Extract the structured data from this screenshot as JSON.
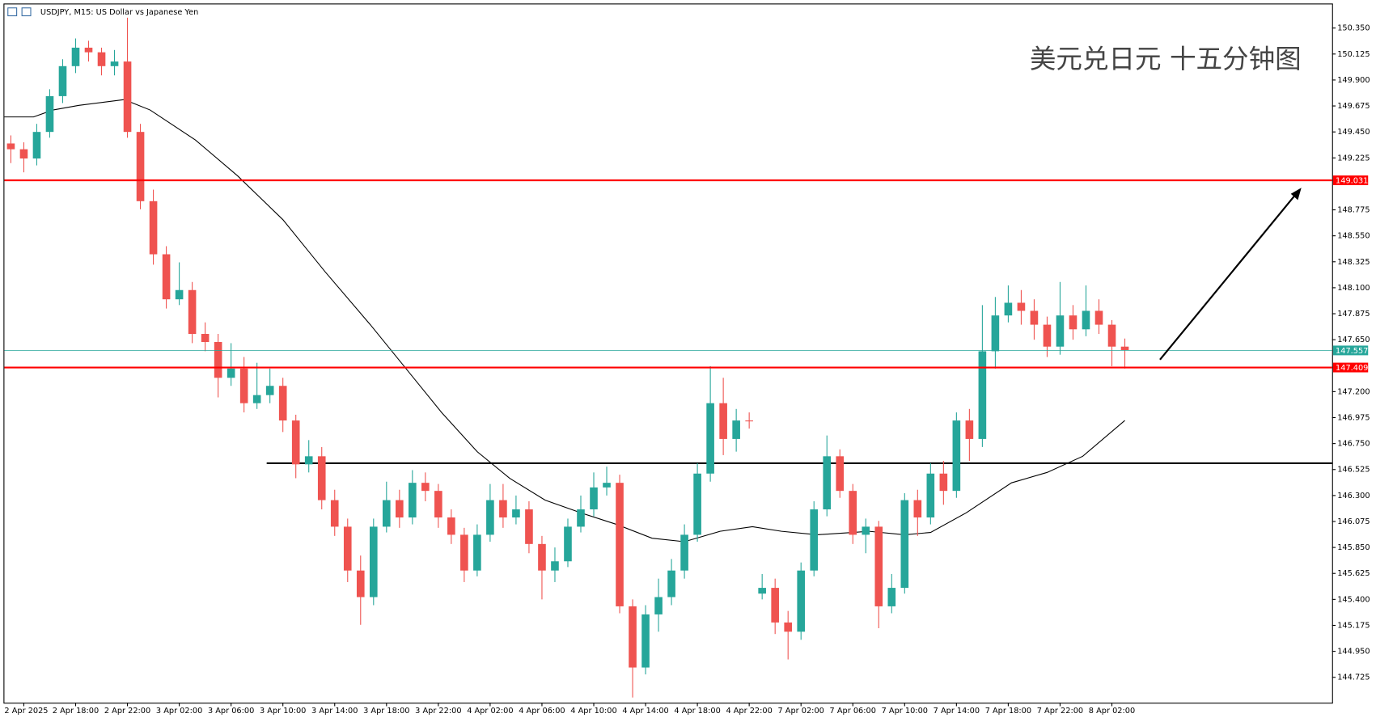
{
  "chart_data": {
    "type": "candlestick",
    "title": "USDJPY, M15:  US Dollar vs Japanese Yen",
    "annotation": "美元兑日元 十五分钟图",
    "up_color": "#26a69a",
    "down_color": "#ef5350",
    "x": [
      -4,
      0,
      4,
      8,
      12,
      16,
      20,
      24,
      28,
      32,
      36,
      40,
      44,
      48,
      52,
      56,
      60,
      64,
      68,
      72,
      76,
      80,
      84,
      88,
      92,
      96,
      100,
      104,
      108,
      112,
      116,
      120,
      124,
      128,
      132,
      136,
      140,
      144,
      148,
      152,
      156,
      160,
      164,
      168,
      172,
      176,
      180,
      184,
      188,
      192,
      196,
      200,
      204,
      208,
      212,
      216,
      220,
      224,
      228,
      232,
      236,
      240,
      244,
      248,
      252,
      256,
      260,
      264,
      268,
      272,
      276,
      280,
      284,
      288,
      292,
      296,
      300,
      304,
      308,
      312,
      316,
      320,
      324,
      328,
      332,
      336,
      340
    ],
    "open": [
      149.35,
      149.3,
      149.22,
      149.45,
      149.76,
      150.02,
      150.18,
      150.14,
      150.02,
      150.06,
      149.45,
      148.85,
      148.39,
      148.0,
      148.08,
      147.7,
      147.63,
      147.32,
      147.4,
      147.1,
      147.17,
      147.25,
      146.95,
      146.57,
      146.64,
      146.26,
      146.03,
      145.65,
      145.42,
      146.03,
      146.26,
      146.11,
      146.41,
      146.34,
      146.11,
      145.96,
      145.65,
      145.96,
      146.26,
      146.11,
      146.18,
      145.88,
      145.65,
      145.73,
      146.03,
      146.18,
      146.37,
      146.41,
      145.34,
      144.81,
      145.27,
      145.42,
      145.65,
      145.96,
      146.49,
      147.1,
      146.79,
      146.95,
      145.45,
      145.5,
      145.2,
      145.12,
      145.65,
      146.18,
      146.64,
      146.34,
      145.96,
      146.03,
      145.34,
      145.5,
      146.26,
      146.11,
      146.49,
      146.34,
      146.95,
      146.79,
      147.55,
      147.86,
      147.97,
      147.9,
      147.78,
      147.59,
      147.86,
      147.74,
      147.9,
      147.78,
      147.59
    ],
    "high": [
      149.42,
      149.36,
      149.52,
      149.82,
      150.08,
      150.26,
      150.24,
      150.18,
      150.16,
      150.44,
      149.52,
      148.95,
      148.46,
      148.32,
      148.15,
      147.8,
      147.7,
      147.62,
      147.5,
      147.45,
      147.4,
      147.32,
      147.0,
      146.78,
      146.72,
      146.35,
      146.1,
      145.78,
      146.1,
      146.42,
      146.35,
      146.52,
      146.5,
      146.4,
      146.18,
      146.02,
      146.05,
      146.4,
      146.4,
      146.3,
      146.25,
      145.95,
      145.85,
      146.1,
      146.3,
      146.5,
      146.55,
      146.48,
      145.4,
      145.35,
      145.58,
      145.75,
      146.05,
      146.58,
      147.42,
      147.32,
      147.05,
      147.02,
      145.62,
      145.58,
      145.3,
      145.72,
      146.25,
      146.82,
      146.7,
      146.4,
      146.1,
      146.08,
      145.62,
      146.32,
      146.35,
      146.58,
      146.6,
      147.02,
      147.05,
      147.95,
      148.02,
      148.12,
      148.08,
      148.0,
      147.85,
      148.15,
      147.95,
      148.12,
      148.0,
      147.82,
      147.66
    ],
    "low": [
      149.18,
      149.1,
      149.16,
      149.4,
      149.7,
      149.96,
      150.06,
      149.94,
      149.94,
      149.4,
      148.78,
      148.3,
      147.92,
      147.95,
      147.62,
      147.55,
      147.15,
      147.25,
      147.02,
      147.05,
      147.1,
      146.85,
      146.45,
      146.5,
      146.18,
      145.95,
      145.55,
      145.18,
      145.35,
      145.98,
      146.02,
      146.05,
      146.25,
      146.02,
      145.88,
      145.55,
      145.6,
      145.9,
      146.02,
      146.05,
      145.8,
      145.4,
      145.55,
      145.68,
      145.98,
      146.12,
      146.3,
      145.28,
      144.55,
      144.75,
      145.12,
      145.35,
      145.58,
      145.9,
      146.42,
      146.65,
      146.68,
      146.88,
      145.4,
      145.1,
      144.88,
      145.05,
      145.6,
      146.12,
      146.28,
      145.88,
      145.8,
      145.15,
      145.28,
      145.45,
      145.95,
      146.05,
      146.22,
      146.28,
      146.6,
      146.72,
      147.4,
      147.8,
      147.78,
      147.65,
      147.5,
      147.52,
      147.65,
      147.68,
      147.7,
      147.42,
      147.4
    ],
    "close": [
      149.3,
      149.22,
      149.45,
      149.76,
      150.02,
      150.18,
      150.14,
      150.02,
      150.06,
      149.45,
      148.85,
      148.39,
      148.0,
      148.08,
      147.7,
      147.63,
      147.32,
      147.4,
      147.1,
      147.17,
      147.25,
      146.95,
      146.57,
      146.64,
      146.26,
      146.03,
      145.65,
      145.42,
      146.03,
      146.26,
      146.11,
      146.41,
      146.34,
      146.11,
      145.96,
      145.65,
      145.96,
      146.26,
      146.11,
      146.18,
      145.88,
      145.65,
      145.73,
      146.03,
      146.18,
      146.37,
      146.41,
      145.34,
      144.81,
      145.27,
      145.42,
      145.65,
      145.96,
      146.49,
      147.1,
      146.79,
      146.95,
      146.95,
      145.5,
      145.2,
      145.12,
      145.65,
      146.18,
      146.64,
      146.34,
      145.96,
      146.03,
      145.34,
      145.5,
      146.26,
      146.11,
      146.49,
      146.34,
      146.95,
      146.79,
      147.55,
      147.86,
      147.97,
      147.9,
      147.78,
      147.59,
      147.86,
      147.74,
      147.9,
      147.78,
      147.59,
      147.557
    ],
    "ma": {
      "color": "#000000",
      "x": [
        -6,
        3,
        9,
        17,
        31,
        39,
        53,
        66,
        80,
        93,
        107,
        118,
        129,
        140,
        150,
        161,
        172,
        183,
        194,
        204,
        215,
        225,
        234,
        245,
        256,
        261,
        272,
        280,
        291,
        305,
        316,
        327,
        340
      ],
      "values": [
        149.58,
        149.58,
        149.64,
        149.68,
        149.73,
        149.64,
        149.38,
        149.07,
        148.69,
        148.24,
        147.78,
        147.4,
        147.02,
        146.68,
        146.45,
        146.26,
        146.15,
        146.05,
        145.93,
        145.9,
        145.99,
        146.03,
        145.99,
        145.96,
        145.98,
        145.99,
        145.96,
        145.98,
        146.15,
        146.41,
        146.5,
        146.64,
        146.95
      ]
    },
    "hlines": [
      {
        "value": 149.031,
        "color": "#ff0000"
      },
      {
        "value": 147.409,
        "color": "#ff0000"
      },
      {
        "value": 147.557,
        "color": "#26a69a"
      }
    ],
    "support": {
      "value": 146.58,
      "from": 75,
      "color": "#000000"
    },
    "xlim": [
      -6,
      404
    ],
    "ylim": [
      144.505,
      150.555
    ],
    "xticks": [
      {
        "value": 0,
        "label": "2 Apr 2025"
      },
      {
        "value": 16,
        "label": "2 Apr 18:00"
      },
      {
        "value": 32,
        "label": "2 Apr 22:00"
      },
      {
        "value": 48,
        "label": "3 Apr 02:00"
      },
      {
        "value": 64,
        "label": "3 Apr 06:00"
      },
      {
        "value": 80,
        "label": "3 Apr 10:00"
      },
      {
        "value": 96,
        "label": "3 Apr 14:00"
      },
      {
        "value": 112,
        "label": "3 Apr 18:00"
      },
      {
        "value": 128,
        "label": "3 Apr 22:00"
      },
      {
        "value": 144,
        "label": "4 Apr 02:00"
      },
      {
        "value": 160,
        "label": "4 Apr 06:00"
      },
      {
        "value": 176,
        "label": "4 Apr 10:00"
      },
      {
        "value": 192,
        "label": "4 Apr 14:00"
      },
      {
        "value": 208,
        "label": "4 Apr 18:00"
      },
      {
        "value": 224,
        "label": "4 Apr 22:00"
      },
      {
        "value": 240,
        "label": "7 Apr 02:00"
      },
      {
        "value": 256,
        "label": "7 Apr 06:00"
      },
      {
        "value": 272,
        "label": "7 Apr 10:00"
      },
      {
        "value": 288,
        "label": "7 Apr 14:00"
      },
      {
        "value": 304,
        "label": "7 Apr 18:00"
      },
      {
        "value": 320,
        "label": "7 Apr 22:00"
      },
      {
        "value": 336,
        "label": "8 Apr 02:00"
      }
    ],
    "yticks": [
      {
        "value": 150.35,
        "label": "150.350"
      },
      150.125,
      {
        "value": 149.9,
        "label": "149.900"
      },
      149.675,
      {
        "value": 149.45,
        "label": "149.450"
      },
      149.225,
      148.775,
      {
        "value": 148.55,
        "label": "148.550"
      },
      148.325,
      {
        "value": 148.1,
        "label": "148.100"
      },
      147.875,
      {
        "value": 147.65,
        "label": "147.650"
      },
      {
        "value": 147.2,
        "label": "147.200"
      },
      146.975,
      {
        "value": 146.75,
        "label": "146.750"
      },
      146.525,
      {
        "value": 146.3,
        "label": "146.300"
      },
      146.075,
      {
        "value": 145.85,
        "label": "145.850"
      },
      145.625,
      {
        "value": 145.4,
        "label": "145.400"
      },
      145.175,
      {
        "value": 144.95,
        "label": "144.950"
      },
      144.725
    ]
  }
}
